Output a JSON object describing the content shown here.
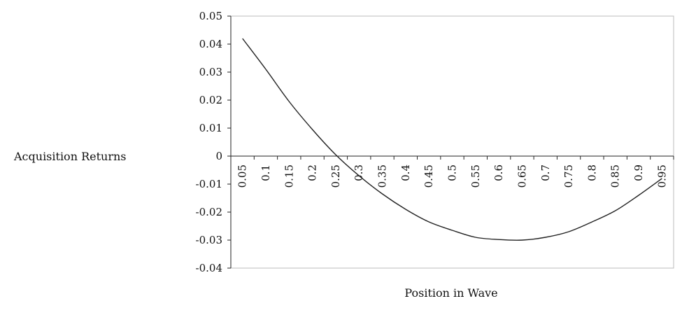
{
  "chart_data": {
    "type": "line",
    "title": "",
    "xlabel": "Position in Wave",
    "ylabel": "Acquisition Returns",
    "categories": [
      "0.05",
      "0.1",
      "0.15",
      "0.2",
      "0.25",
      "0.3",
      "0.35",
      "0.4",
      "0.45",
      "0.5",
      "0.55",
      "0.6",
      "0.65",
      "0.7",
      "0.75",
      "0.8",
      "0.85",
      "0.9",
      "0.95"
    ],
    "values": [
      0.042,
      0.031,
      0.0195,
      0.0095,
      0.0005,
      -0.007,
      -0.0135,
      -0.019,
      -0.0235,
      -0.0265,
      -0.029,
      -0.0298,
      -0.03,
      -0.029,
      -0.027,
      -0.0235,
      -0.0195,
      -0.014,
      -0.008
    ],
    "ylim": [
      -0.04,
      0.05
    ],
    "yticks": [
      "0.05",
      "0.04",
      "0.03",
      "0.02",
      "0.01",
      "0",
      "-0.01",
      "-0.02",
      "-0.03",
      "-0.04"
    ],
    "grid": false,
    "legend": "none",
    "line_color": "#222222",
    "axis_color": "#222222",
    "frame_color": "#bbbbbb"
  }
}
